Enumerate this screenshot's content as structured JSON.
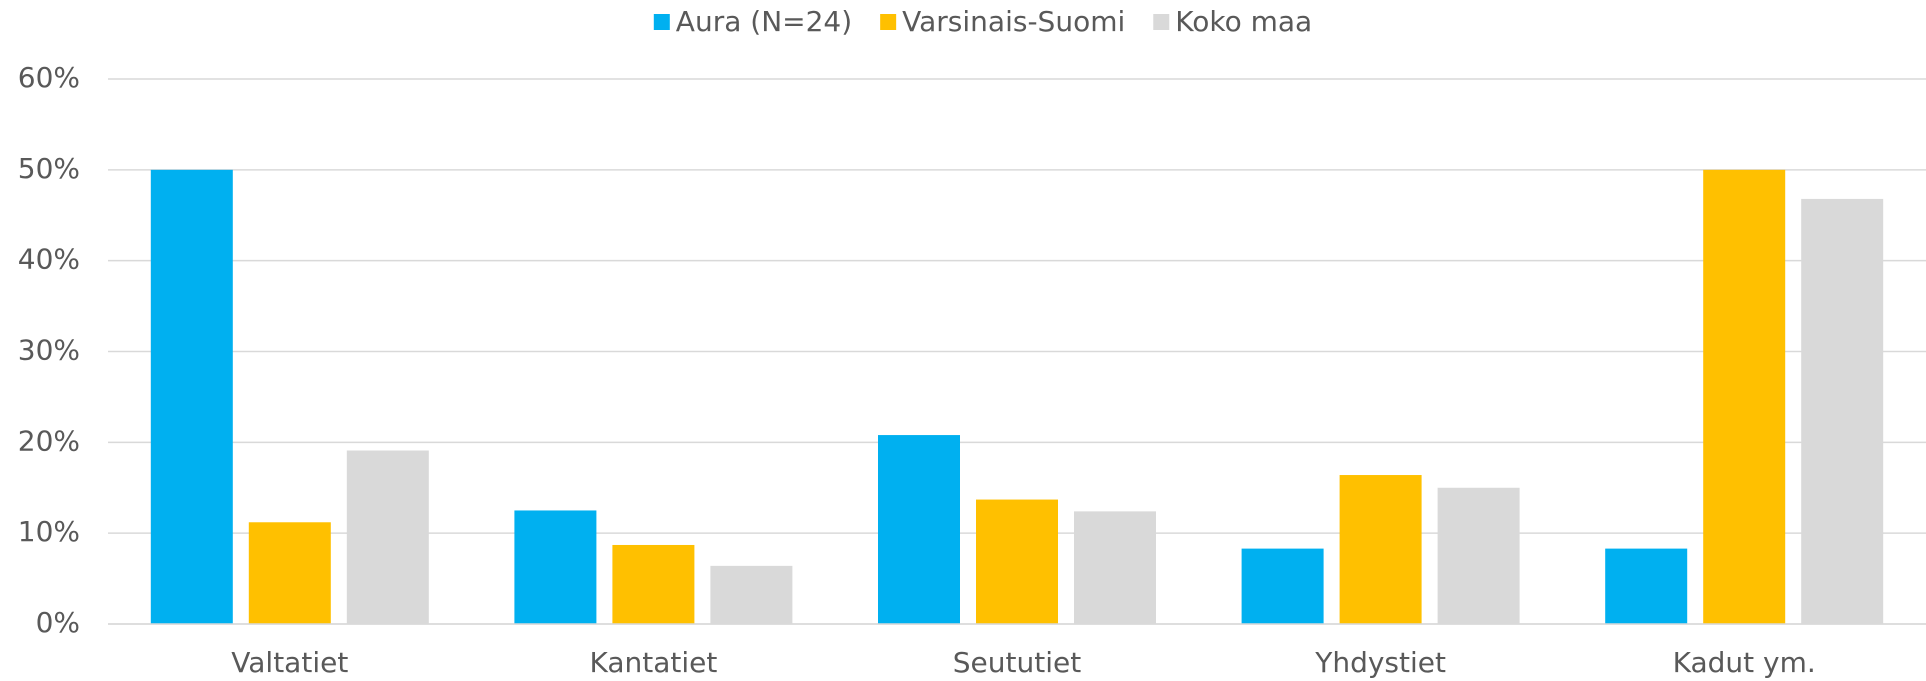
{
  "chart_data": {
    "type": "bar",
    "categories": [
      "Valtatiet",
      "Kantatiet",
      "Seututiet",
      "Yhdystiet",
      "Kadut ym."
    ],
    "series": [
      {
        "name": "Aura (N=24)",
        "color": "#00b0f0",
        "values": [
          50,
          12.5,
          20.8,
          8.3,
          8.3
        ]
      },
      {
        "name": "Varsinais-Suomi",
        "color": "#ffc000",
        "values": [
          11.2,
          8.7,
          13.7,
          16.4,
          50
        ]
      },
      {
        "name": "Koko maa",
        "color": "#d9d9d9",
        "values": [
          19.1,
          6.4,
          12.4,
          15.0,
          46.8
        ]
      }
    ],
    "ylim": [
      0,
      60
    ],
    "yticks": [
      {
        "value": 0,
        "label": "0%"
      },
      {
        "value": 10,
        "label": "10%"
      },
      {
        "value": 20,
        "label": "20%"
      },
      {
        "value": 30,
        "label": "30%"
      },
      {
        "value": 40,
        "label": "40%"
      },
      {
        "value": 50,
        "label": "50%"
      },
      {
        "value": 60,
        "label": "60%"
      }
    ],
    "grid": true,
    "legend": "top"
  }
}
